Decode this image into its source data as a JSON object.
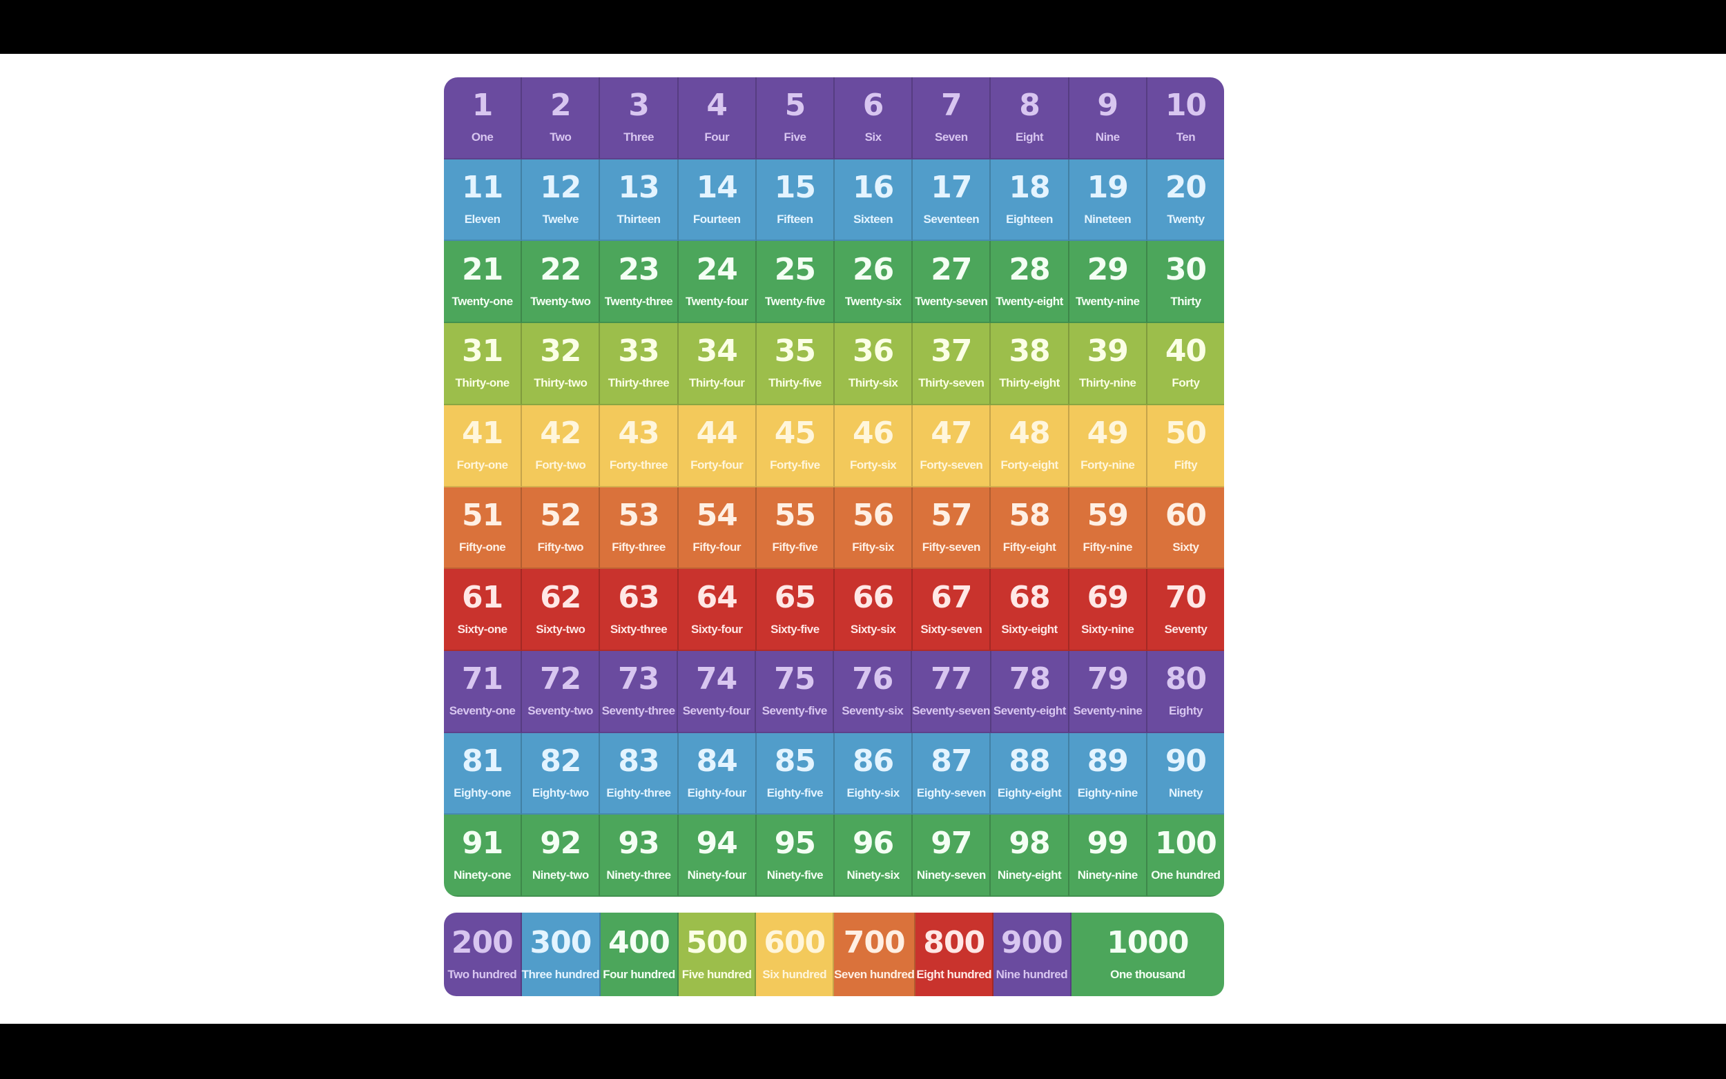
{
  "colors": {
    "purple": "#6a4b9f",
    "blue": "#519dca",
    "green": "#4ca65b",
    "lime": "#9cbe4b",
    "yellow": "#f3c95b",
    "orange": "#da723b",
    "red": "#c9332d"
  },
  "text_colors": {
    "purple": "#d8c6f0",
    "blue": "#e4f4ff",
    "green": "#f4fff4",
    "lime": "#fbffe6",
    "yellow": "#fff6dc",
    "orange": "#fff0e4",
    "red": "#ffe8e6"
  },
  "grid": {
    "rows": [
      {
        "color": "purple",
        "cells": [
          [
            "1",
            "One"
          ],
          [
            "2",
            "Two"
          ],
          [
            "3",
            "Three"
          ],
          [
            "4",
            "Four"
          ],
          [
            "5",
            "Five"
          ],
          [
            "6",
            "Six"
          ],
          [
            "7",
            "Seven"
          ],
          [
            "8",
            "Eight"
          ],
          [
            "9",
            "Nine"
          ],
          [
            "10",
            "Ten"
          ]
        ]
      },
      {
        "color": "blue",
        "cells": [
          [
            "11",
            "Eleven"
          ],
          [
            "12",
            "Twelve"
          ],
          [
            "13",
            "Thirteen"
          ],
          [
            "14",
            "Fourteen"
          ],
          [
            "15",
            "Fifteen"
          ],
          [
            "16",
            "Sixteen"
          ],
          [
            "17",
            "Seventeen"
          ],
          [
            "18",
            "Eighteen"
          ],
          [
            "19",
            "Nineteen"
          ],
          [
            "20",
            "Twenty"
          ]
        ]
      },
      {
        "color": "green",
        "cells": [
          [
            "21",
            "Twenty-one"
          ],
          [
            "22",
            "Twenty-two"
          ],
          [
            "23",
            "Twenty-three"
          ],
          [
            "24",
            "Twenty-four"
          ],
          [
            "25",
            "Twenty-five"
          ],
          [
            "26",
            "Twenty-six"
          ],
          [
            "27",
            "Twenty-seven"
          ],
          [
            "28",
            "Twenty-eight"
          ],
          [
            "29",
            "Twenty-nine"
          ],
          [
            "30",
            "Thirty"
          ]
        ]
      },
      {
        "color": "lime",
        "cells": [
          [
            "31",
            "Thirty-one"
          ],
          [
            "32",
            "Thirty-two"
          ],
          [
            "33",
            "Thirty-three"
          ],
          [
            "34",
            "Thirty-four"
          ],
          [
            "35",
            "Thirty-five"
          ],
          [
            "36",
            "Thirty-six"
          ],
          [
            "37",
            "Thirty-seven"
          ],
          [
            "38",
            "Thirty-eight"
          ],
          [
            "39",
            "Thirty-nine"
          ],
          [
            "40",
            "Forty"
          ]
        ]
      },
      {
        "color": "yellow",
        "cells": [
          [
            "41",
            "Forty-one"
          ],
          [
            "42",
            "Forty-two"
          ],
          [
            "43",
            "Forty-three"
          ],
          [
            "44",
            "Forty-four"
          ],
          [
            "45",
            "Forty-five"
          ],
          [
            "46",
            "Forty-six"
          ],
          [
            "47",
            "Forty-seven"
          ],
          [
            "48",
            "Forty-eight"
          ],
          [
            "49",
            "Forty-nine"
          ],
          [
            "50",
            "Fifty"
          ]
        ]
      },
      {
        "color": "orange",
        "cells": [
          [
            "51",
            "Fifty-one"
          ],
          [
            "52",
            "Fifty-two"
          ],
          [
            "53",
            "Fifty-three"
          ],
          [
            "54",
            "Fifty-four"
          ],
          [
            "55",
            "Fifty-five"
          ],
          [
            "56",
            "Fifty-six"
          ],
          [
            "57",
            "Fifty-seven"
          ],
          [
            "58",
            "Fifty-eight"
          ],
          [
            "59",
            "Fifty-nine"
          ],
          [
            "60",
            "Sixty"
          ]
        ]
      },
      {
        "color": "red",
        "cells": [
          [
            "61",
            "Sixty-one"
          ],
          [
            "62",
            "Sixty-two"
          ],
          [
            "63",
            "Sixty-three"
          ],
          [
            "64",
            "Sixty-four"
          ],
          [
            "65",
            "Sixty-five"
          ],
          [
            "66",
            "Sixty-six"
          ],
          [
            "67",
            "Sixty-seven"
          ],
          [
            "68",
            "Sixty-eight"
          ],
          [
            "69",
            "Sixty-nine"
          ],
          [
            "70",
            "Seventy"
          ]
        ]
      },
      {
        "color": "purple",
        "cells": [
          [
            "71",
            "Seventy-one"
          ],
          [
            "72",
            "Seventy-two"
          ],
          [
            "73",
            "Seventy-three"
          ],
          [
            "74",
            "Seventy-four"
          ],
          [
            "75",
            "Seventy-five"
          ],
          [
            "76",
            "Seventy-six"
          ],
          [
            "77",
            "Seventy-seven"
          ],
          [
            "78",
            "Seventy-eight"
          ],
          [
            "79",
            "Seventy-nine"
          ],
          [
            "80",
            "Eighty"
          ]
        ]
      },
      {
        "color": "blue",
        "cells": [
          [
            "81",
            "Eighty-one"
          ],
          [
            "82",
            "Eighty-two"
          ],
          [
            "83",
            "Eighty-three"
          ],
          [
            "84",
            "Eighty-four"
          ],
          [
            "85",
            "Eighty-five"
          ],
          [
            "86",
            "Eighty-six"
          ],
          [
            "87",
            "Eighty-seven"
          ],
          [
            "88",
            "Eighty-eight"
          ],
          [
            "89",
            "Eighty-nine"
          ],
          [
            "90",
            "Ninety"
          ]
        ]
      },
      {
        "color": "green",
        "cells": [
          [
            "91",
            "Ninety-one"
          ],
          [
            "92",
            "Ninety-two"
          ],
          [
            "93",
            "Ninety-three"
          ],
          [
            "94",
            "Ninety-four"
          ],
          [
            "95",
            "Ninety-five"
          ],
          [
            "96",
            "Ninety-six"
          ],
          [
            "97",
            "Ninety-seven"
          ],
          [
            "98",
            "Ninety-eight"
          ],
          [
            "99",
            "Ninety-nine"
          ],
          [
            "100",
            "One hundred"
          ]
        ]
      }
    ]
  },
  "hundreds": [
    {
      "color": "purple",
      "n": "200",
      "w": "Two hundred"
    },
    {
      "color": "blue",
      "n": "300",
      "w": "Three hundred"
    },
    {
      "color": "green",
      "n": "400",
      "w": "Four hundred"
    },
    {
      "color": "lime",
      "n": "500",
      "w": "Five hundred"
    },
    {
      "color": "yellow",
      "n": "600",
      "w": "Six hundred"
    },
    {
      "color": "orange",
      "n": "700",
      "w": "Seven hundred"
    },
    {
      "color": "red",
      "n": "800",
      "w": "Eight hundred"
    },
    {
      "color": "purple",
      "n": "900",
      "w": "Nine hundred"
    },
    {
      "color": "green",
      "n": "1000",
      "w": "One thousand"
    }
  ]
}
